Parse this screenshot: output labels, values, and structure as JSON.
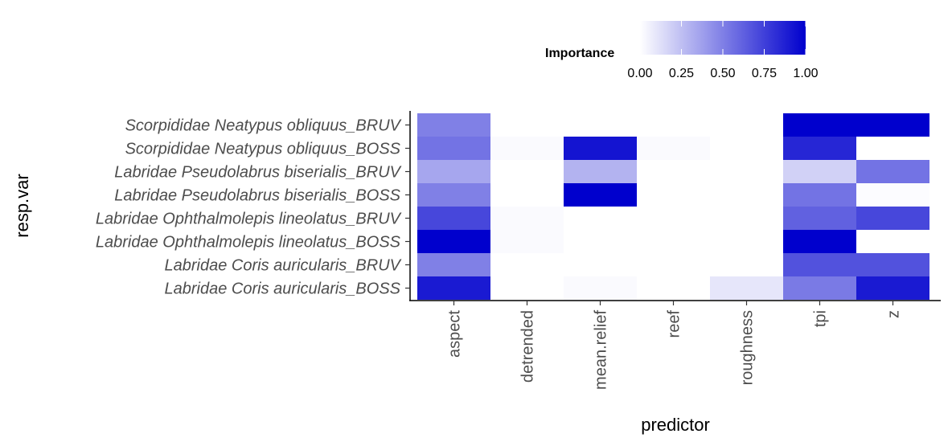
{
  "chart_data": {
    "type": "heatmap",
    "x_title": "predictor",
    "y_title": "resp.var",
    "x_categories": [
      "aspect",
      "detrended",
      "mean.relief",
      "reef",
      "roughness",
      "tpi",
      "z"
    ],
    "y_categories": [
      "Scorpididae Neatypus obliquus_BRUV",
      "Scorpididae Neatypus obliquus_BOSS",
      "Labridae Pseudolabrus biserialis_BRUV",
      "Labridae Pseudolabrus biserialis_BOSS",
      "Labridae Ophthalmolepis lineolatus_BRUV",
      "Labridae Ophthalmolepis lineolatus_BOSS",
      "Labridae Coris auricularis_BRUV",
      "Labridae Coris auricularis_BOSS"
    ],
    "values": [
      [
        0.5,
        null,
        null,
        null,
        null,
        1.0,
        1.0
      ],
      [
        0.55,
        0.02,
        0.92,
        0.02,
        null,
        0.85,
        null
      ],
      [
        0.35,
        0.0,
        0.3,
        null,
        null,
        0.18,
        0.55
      ],
      [
        0.5,
        null,
        1.0,
        null,
        null,
        0.55,
        0.01
      ],
      [
        0.72,
        0.02,
        null,
        null,
        null,
        0.62,
        0.72
      ],
      [
        1.0,
        0.02,
        null,
        null,
        null,
        1.0,
        null
      ],
      [
        0.5,
        null,
        null,
        null,
        null,
        0.68,
        0.68
      ],
      [
        0.9,
        null,
        0.02,
        null,
        0.1,
        0.52,
        0.9
      ]
    ],
    "legend": {
      "title": "Importance",
      "position": "top",
      "ticks": [
        "0.00",
        "0.25",
        "0.50",
        "0.75",
        "1.00"
      ],
      "range": [
        0,
        1
      ],
      "low_color": "#ffffff",
      "high_color": "#0000cd",
      "missing_color": "#ffffff"
    },
    "grid": false
  }
}
